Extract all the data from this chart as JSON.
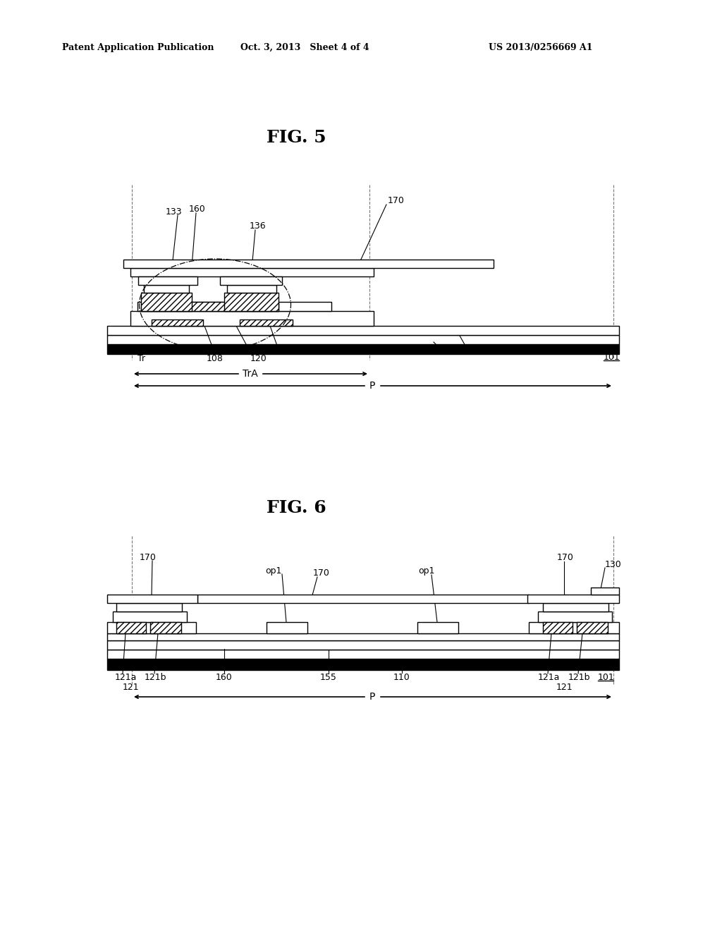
{
  "bg_color": "#ffffff",
  "header_left": "Patent Application Publication",
  "header_mid": "Oct. 3, 2013   Sheet 4 of 4",
  "header_right": "US 2013/0256669 A1",
  "fig5_title": "FIG. 5",
  "fig6_title": "FIG. 6"
}
